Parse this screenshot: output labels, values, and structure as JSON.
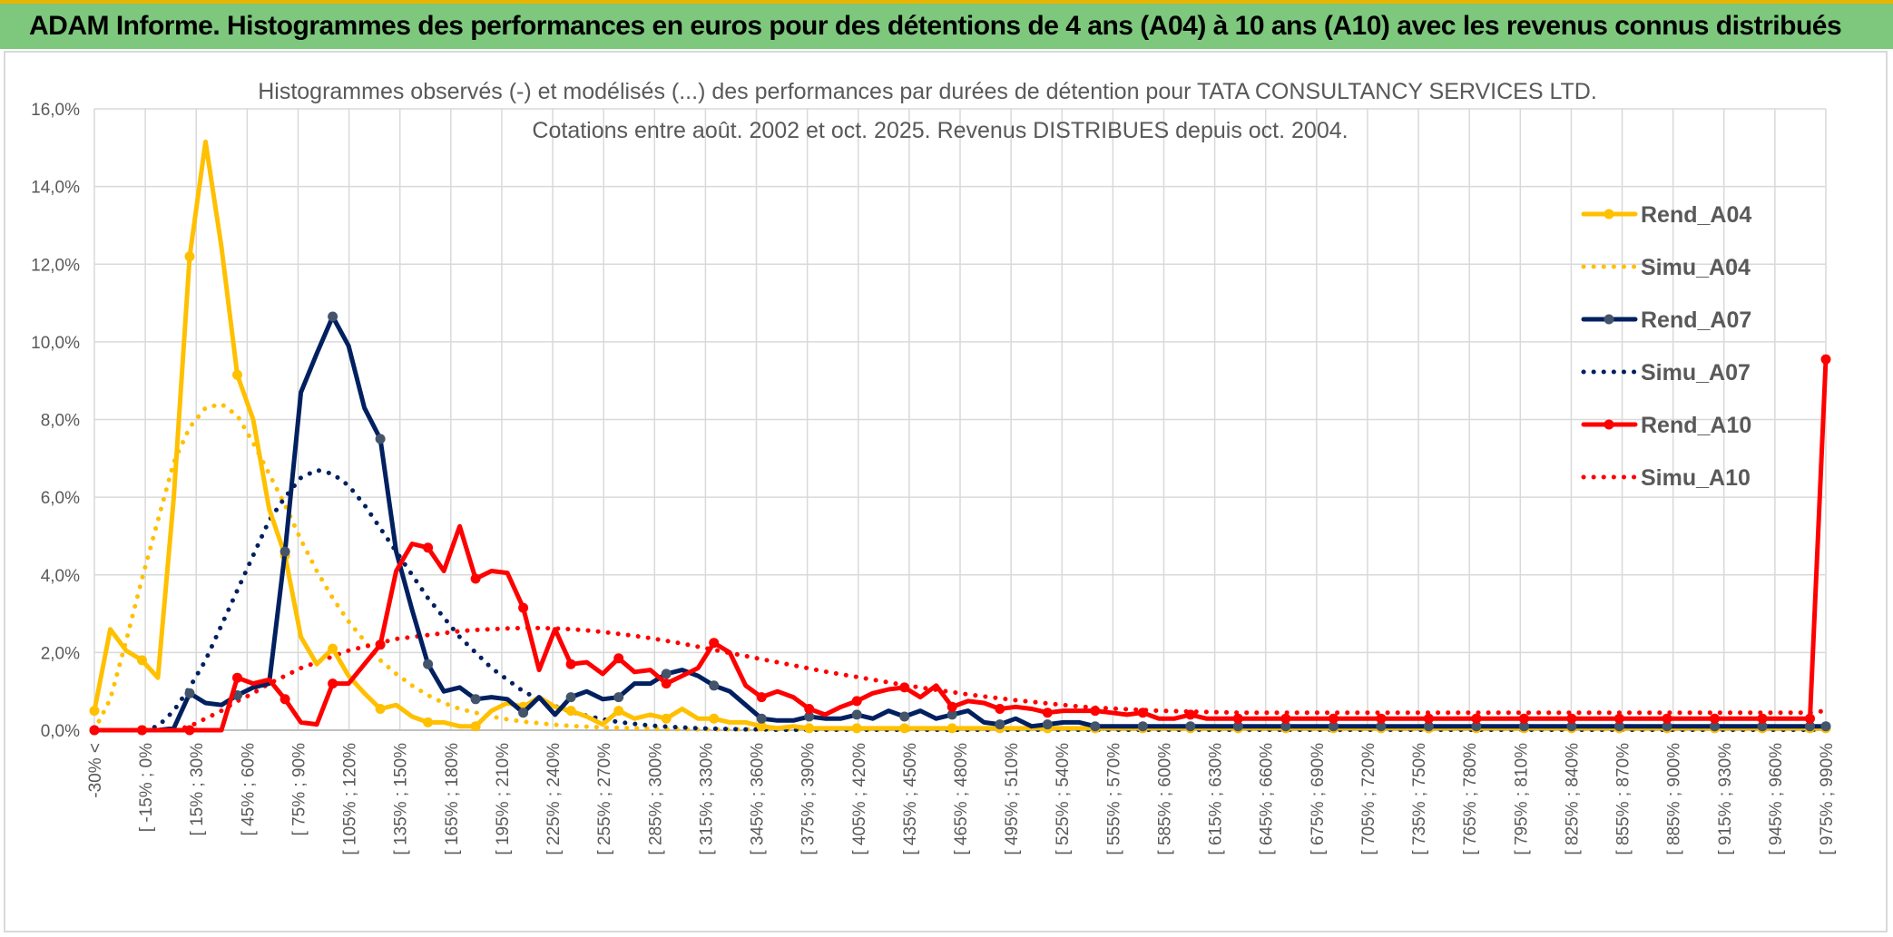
{
  "banner": {
    "title": "ADAM Informe. Histogrammes des performances en euros pour des détentions de 4 ans (A04) à 10 ans (A10) avec les revenus connus distribués"
  },
  "chart_data": {
    "type": "line",
    "title_line1": "Histogrammes observés (-) et modélisés (...) des performances par durées de détention pour TATA CONSULTANCY SERVICES LTD.",
    "title_line2": "Cotations entre août. 2002 et oct. 2025. Revenus DISTRIBUES depuis oct. 2004.",
    "ylim": [
      0,
      16
    ],
    "yticks": [
      "0,0%",
      "2,0%",
      "4,0%",
      "6,0%",
      "8,0%",
      "10,0%",
      "12,0%",
      "14,0%",
      "16,0%"
    ],
    "grid": true,
    "legend_position": "right",
    "x_tick_labels": [
      "-30% <",
      "[ -15% ; 0%",
      "[ 15% ; 30%",
      "[ 45% ; 60%",
      "[ 75% ; 90%",
      "[ 105% ; 120%",
      "[ 135% ; 150%",
      "[ 165% ; 180%",
      "[ 195% ; 210%",
      "[ 225% ; 240%",
      "[ 255% ; 270%",
      "[ 285% ; 300%",
      "[ 315% ; 330%",
      "[ 345% ; 360%",
      "[ 375% ; 390%",
      "[ 405% ; 420%",
      "[ 435% ; 450%",
      "[ 465% ; 480%",
      "[ 495% ; 510%",
      "[ 525% ; 540%",
      "[ 555% ; 570%",
      "[ 585% ; 600%",
      "[ 615% ; 630%",
      "[ 645% ; 660%",
      "[ 675% ; 690%",
      "[ 705% ; 720%",
      "[ 735% ; 750%",
      "[ 765% ; 780%",
      "[ 795% ; 810%",
      "[ 825% ; 840%",
      "[ 855% ; 870%",
      "[ 885% ; 900%",
      "[ 915% ; 930%",
      "[ 945% ; 960%",
      "[ 975% ; 990%"
    ],
    "series": [
      {
        "name": "Rend_A04",
        "color": "#ffc000",
        "style": "solid",
        "marker": true,
        "values": [
          0.5,
          2.6,
          2.05,
          1.8,
          1.35,
          6.0,
          12.2,
          15.15,
          12.45,
          9.15,
          8.0,
          5.7,
          4.5,
          2.4,
          1.7,
          2.1,
          1.4,
          0.95,
          0.55,
          0.65,
          0.35,
          0.2,
          0.2,
          0.1,
          0.1,
          0.5,
          0.7,
          0.6,
          0.85,
          0.6,
          0.5,
          0.35,
          0.15,
          0.5,
          0.3,
          0.4,
          0.3,
          0.55,
          0.3,
          0.3,
          0.2,
          0.2,
          0.1,
          0.05,
          0.1,
          0.05,
          0.05,
          0.05,
          0.05,
          0.05,
          0.05,
          0.05,
          0.05,
          0.05,
          0.05,
          0.05,
          0.05,
          0.05,
          0.05,
          0.05,
          0.05,
          0.05,
          0.05,
          0.05,
          0.05,
          0.05,
          0.05,
          0.05,
          0.05,
          0.05,
          0.05,
          0.05,
          0.05,
          0.05,
          0.05,
          0.05,
          0.05,
          0.05,
          0.05,
          0.05,
          0.05,
          0.05,
          0.05,
          0.05,
          0.05,
          0.05,
          0.05,
          0.05,
          0.05,
          0.05,
          0.05,
          0.05,
          0.05,
          0.05,
          0.05,
          0.05,
          0.05,
          0.05,
          0.05,
          0.05,
          0.05,
          0.05,
          0.05,
          0.05,
          0.05,
          0.05,
          0.05,
          0.05,
          0.05,
          0.05
        ]
      },
      {
        "name": "Simu_A04",
        "color": "#ffc000",
        "style": "dotted",
        "marker": false,
        "values": [
          0.0,
          0.8,
          2.3,
          3.9,
          5.4,
          6.9,
          7.8,
          8.3,
          8.4,
          8.1,
          7.4,
          6.6,
          5.8,
          4.9,
          4.1,
          3.4,
          2.8,
          2.3,
          1.8,
          1.45,
          1.15,
          0.9,
          0.7,
          0.55,
          0.45,
          0.35,
          0.28,
          0.22,
          0.18,
          0.14,
          0.11,
          0.09,
          0.07,
          0.06,
          0.05,
          0.04,
          0.03,
          0.03,
          0.02,
          0.02,
          0.02,
          0.02,
          0.02,
          0.02,
          0.02,
          0.02,
          0.02,
          0.02,
          0.02,
          0.02,
          0.02,
          0.02,
          0.02,
          0.02,
          0.02,
          0.02,
          0.02,
          0.02,
          0.02,
          0.02,
          0.02,
          0.02,
          0.02,
          0.02,
          0.02,
          0.02,
          0.02,
          0.02,
          0.02,
          0.02,
          0.02,
          0.02,
          0.02,
          0.02,
          0.02,
          0.02,
          0.02,
          0.02,
          0.02,
          0.02,
          0.02,
          0.02,
          0.02,
          0.02,
          0.02,
          0.02,
          0.02,
          0.02,
          0.02,
          0.02,
          0.02,
          0.02,
          0.02,
          0.02,
          0.02,
          0.02,
          0.02,
          0.02,
          0.02,
          0.02,
          0.02,
          0.02,
          0.02,
          0.02,
          0.02,
          0.02,
          0.02,
          0.02,
          0.02,
          0.02
        ]
      },
      {
        "name": "Rend_A07",
        "color": "#002060",
        "style": "solid",
        "marker": true,
        "values": [
          0.0,
          0.0,
          0.0,
          0.0,
          0.0,
          0.05,
          0.95,
          0.7,
          0.65,
          0.9,
          1.1,
          1.2,
          4.6,
          8.7,
          9.7,
          10.65,
          9.9,
          8.3,
          7.5,
          4.6,
          3.1,
          1.7,
          1.0,
          1.1,
          0.8,
          0.85,
          0.8,
          0.45,
          0.85,
          0.4,
          0.85,
          1.0,
          0.8,
          0.85,
          1.2,
          1.2,
          1.45,
          1.55,
          1.4,
          1.15,
          1.0,
          0.65,
          0.3,
          0.25,
          0.25,
          0.35,
          0.3,
          0.3,
          0.4,
          0.3,
          0.5,
          0.35,
          0.5,
          0.3,
          0.4,
          0.5,
          0.2,
          0.15,
          0.3,
          0.1,
          0.15,
          0.2,
          0.2,
          0.1,
          0.1,
          0.1,
          0.1,
          0.1,
          0.1,
          0.1,
          0.1,
          0.1,
          0.1,
          0.1,
          0.1,
          0.1,
          0.1,
          0.1,
          0.1,
          0.1,
          0.1,
          0.1,
          0.1,
          0.1,
          0.1,
          0.1,
          0.1,
          0.1,
          0.1,
          0.1,
          0.1,
          0.1,
          0.1,
          0.1,
          0.1,
          0.1,
          0.1,
          0.1,
          0.1,
          0.1,
          0.1,
          0.1,
          0.1,
          0.1,
          0.1,
          0.1,
          0.1,
          0.1,
          0.1,
          0.1
        ]
      },
      {
        "name": "Simu_A07",
        "color": "#002060",
        "style": "dotted",
        "marker": false,
        "values": [
          0.0,
          0.0,
          0.0,
          0.0,
          0.1,
          0.5,
          1.1,
          1.8,
          2.7,
          3.6,
          4.5,
          5.4,
          6.0,
          6.5,
          6.7,
          6.6,
          6.3,
          5.8,
          5.2,
          4.6,
          4.0,
          3.4,
          2.9,
          2.4,
          2.0,
          1.6,
          1.3,
          1.0,
          0.8,
          0.62,
          0.48,
          0.37,
          0.28,
          0.21,
          0.16,
          0.12,
          0.09,
          0.07,
          0.05,
          0.04,
          0.03,
          0.02,
          0.02,
          0.01,
          0.01,
          0.01,
          0.01,
          0.01,
          0.01,
          0.01,
          0.01,
          0.01,
          0.01,
          0.01,
          0.01,
          0.01,
          0.01,
          0.01,
          0.01,
          0.01,
          0.01,
          0.01,
          0.01,
          0.01,
          0.01,
          0.01,
          0.01,
          0.01,
          0.01,
          0.01,
          0.01,
          0.01,
          0.01,
          0.01,
          0.01,
          0.01,
          0.01,
          0.01,
          0.01,
          0.01,
          0.01,
          0.01,
          0.01,
          0.01,
          0.01,
          0.01,
          0.01,
          0.01,
          0.01,
          0.01,
          0.01,
          0.01,
          0.01,
          0.01,
          0.01,
          0.01,
          0.01,
          0.01,
          0.01,
          0.01,
          0.01,
          0.01,
          0.01,
          0.01,
          0.01,
          0.01,
          0.01,
          0.01,
          0.01,
          0.01
        ]
      },
      {
        "name": "Rend_A10",
        "color": "#ff0000",
        "style": "solid",
        "marker": true,
        "values": [
          0.0,
          0.0,
          0.0,
          0.0,
          0.0,
          0.0,
          0.0,
          0.0,
          0.0,
          1.35,
          1.2,
          1.3,
          0.8,
          0.2,
          0.15,
          1.2,
          1.2,
          1.7,
          2.2,
          4.1,
          4.8,
          4.7,
          4.1,
          5.25,
          3.9,
          4.1,
          4.05,
          3.15,
          1.55,
          2.6,
          1.7,
          1.75,
          1.45,
          1.85,
          1.5,
          1.55,
          1.2,
          1.4,
          1.6,
          2.25,
          2.0,
          1.15,
          0.85,
          1.0,
          0.85,
          0.55,
          0.4,
          0.6,
          0.75,
          0.95,
          1.05,
          1.1,
          0.85,
          1.15,
          0.6,
          0.75,
          0.7,
          0.55,
          0.6,
          0.55,
          0.45,
          0.5,
          0.5,
          0.5,
          0.45,
          0.4,
          0.45,
          0.3,
          0.3,
          0.4,
          0.3,
          0.3,
          0.3,
          0.3,
          0.3,
          0.3,
          0.3,
          0.3,
          0.3,
          0.3,
          0.3,
          0.3,
          0.3,
          0.3,
          0.3,
          0.3,
          0.3,
          0.3,
          0.3,
          0.3,
          0.3,
          0.3,
          0.3,
          0.3,
          0.3,
          0.3,
          0.3,
          0.3,
          0.3,
          0.3,
          0.3,
          0.3,
          0.3,
          0.3,
          0.3,
          0.3,
          0.3,
          0.3,
          0.3,
          9.55
        ]
      },
      {
        "name": "Simu_A10",
        "color": "#ff0000",
        "style": "dotted",
        "marker": false,
        "values": [
          0.0,
          0.0,
          0.0,
          0.0,
          0.0,
          0.0,
          0.1,
          0.3,
          0.5,
          0.75,
          0.95,
          1.2,
          1.4,
          1.6,
          1.75,
          1.9,
          2.05,
          2.15,
          2.25,
          2.35,
          2.4,
          2.45,
          2.5,
          2.55,
          2.58,
          2.6,
          2.62,
          2.63,
          2.63,
          2.62,
          2.6,
          2.57,
          2.53,
          2.48,
          2.43,
          2.37,
          2.3,
          2.23,
          2.15,
          2.07,
          1.99,
          1.91,
          1.83,
          1.75,
          1.67,
          1.59,
          1.51,
          1.44,
          1.37,
          1.3,
          1.23,
          1.16,
          1.1,
          1.04,
          0.98,
          0.92,
          0.87,
          0.82,
          0.77,
          0.73,
          0.69,
          0.65,
          0.61,
          0.58,
          0.56,
          0.54,
          0.52,
          0.5,
          0.49,
          0.48,
          0.47,
          0.46,
          0.45,
          0.45,
          0.45,
          0.45,
          0.45,
          0.45,
          0.45,
          0.45,
          0.45,
          0.45,
          0.45,
          0.45,
          0.45,
          0.45,
          0.45,
          0.45,
          0.45,
          0.45,
          0.45,
          0.45,
          0.45,
          0.45,
          0.45,
          0.45,
          0.45,
          0.45,
          0.45,
          0.45,
          0.45,
          0.45,
          0.45,
          0.45,
          0.45,
          0.45,
          0.45,
          0.45,
          0.45,
          0.5
        ]
      }
    ]
  }
}
